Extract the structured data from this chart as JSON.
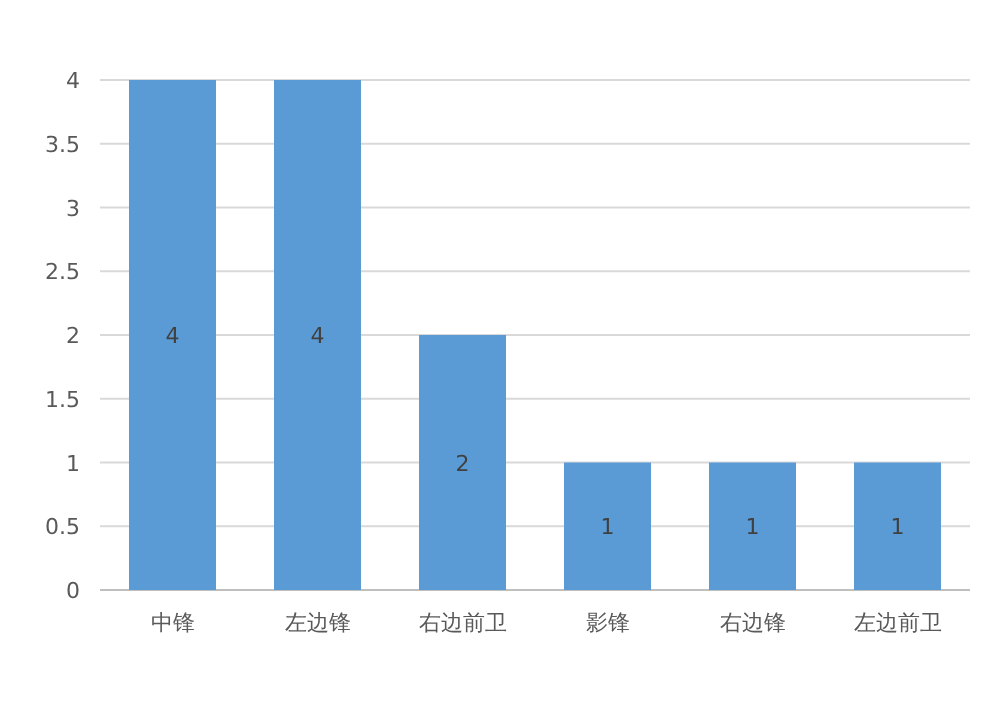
{
  "chart_data": {
    "type": "bar",
    "categories": [
      "中锋",
      "左边锋",
      "右边前卫",
      "影锋",
      "右边锋",
      "左边前卫"
    ],
    "values": [
      4,
      4,
      2,
      1,
      1,
      1
    ],
    "color": "#5b9bd5",
    "ylim": [
      0,
      4
    ],
    "yticks": [
      0,
      0.5,
      1,
      1.5,
      2,
      2.5,
      3,
      3.5,
      4
    ],
    "grid": "y",
    "data_labels": true
  }
}
